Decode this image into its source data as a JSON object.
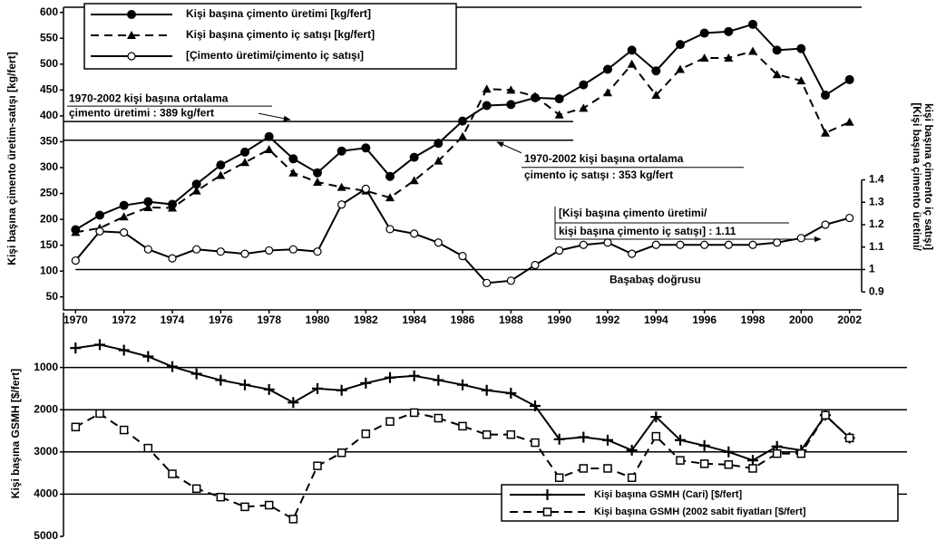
{
  "chart_data": [
    {
      "type": "line",
      "y_label": "Kişi başına çimento üretim-satışı [kg/fert]",
      "y2_label": [
        "[Kişi başına çimento üretimi/",
        "kişi başına çimento iç satışı]"
      ],
      "x": [
        1970,
        1971,
        1972,
        1973,
        1974,
        1975,
        1976,
        1977,
        1978,
        1979,
        1980,
        1981,
        1982,
        1983,
        1984,
        1985,
        1986,
        1987,
        1988,
        1989,
        1990,
        1991,
        1992,
        1993,
        1994,
        1995,
        1996,
        1997,
        1998,
        1999,
        2000,
        2001,
        2002
      ],
      "xlim": [
        1969.5,
        2002.5
      ],
      "xticks": [
        1970,
        1972,
        1974,
        1976,
        1978,
        1980,
        1982,
        1984,
        1986,
        1988,
        1990,
        1992,
        1994,
        1996,
        1998,
        2000,
        2002
      ],
      "ylim": [
        25,
        610
      ],
      "yticks": [
        50,
        100,
        150,
        200,
        250,
        300,
        350,
        400,
        450,
        500,
        550,
        600
      ],
      "y2lim": [
        0.82,
        2.17
      ],
      "y2ticks": [
        0.9,
        1,
        1.1,
        1.2,
        1.3,
        1.4
      ],
      "legend": "upper left",
      "series": [
        {
          "name": "Kişi başına çimento üretimi [kg/fert]",
          "color": "#000000",
          "dash": "solid",
          "marker": "filled-circle",
          "values": [
            180,
            208,
            227,
            234,
            229,
            268,
            305,
            330,
            360,
            317,
            290,
            332,
            338,
            283,
            320,
            347,
            390,
            420,
            422,
            435,
            433,
            460,
            490,
            527,
            487,
            538,
            560,
            563,
            577,
            527,
            530,
            440,
            470
          ]
        },
        {
          "name": "Kişi başına çimento iç satışı [kg/fert]",
          "color": "#000000",
          "dash": "dashed",
          "marker": "filled-triangle",
          "values": [
            175,
            183,
            205,
            223,
            222,
            255,
            285,
            310,
            335,
            290,
            272,
            262,
            255,
            242,
            275,
            313,
            360,
            452,
            450,
            438,
            402,
            415,
            445,
            500,
            440,
            490,
            512,
            512,
            525,
            480,
            468,
            367,
            388
          ]
        },
        {
          "name": "[Çimento üretimi/çimento iç satışı]",
          "color": "#000000",
          "dash": "solid",
          "marker": "open-circle",
          "axis": "y2",
          "values": [
            1.04,
            1.17,
            1.165,
            1.09,
            1.05,
            1.09,
            1.08,
            1.07,
            1.085,
            1.09,
            1.08,
            1.29,
            1.36,
            1.18,
            1.16,
            1.12,
            1.06,
            0.94,
            0.95,
            1.02,
            1.085,
            1.11,
            1.12,
            1.07,
            1.11,
            1.11,
            1.11,
            1.11,
            1.11,
            1.12,
            1.14,
            1.2,
            1.23
          ]
        }
      ],
      "reference_lines": [
        {
          "value": 389,
          "lines": [
            "1970-2002 kişi başına ortalama",
            "çimento üretimi : 389 kg/fert"
          ]
        },
        {
          "value": 353,
          "lines": [
            "1970-2002 kişi başına ortalama",
            "çimento iç satışı : 353 kg/fert"
          ]
        },
        {
          "value": 1,
          "axis": "y2",
          "lines": [
            "Başabaş doğrusu"
          ]
        }
      ],
      "annotations": [
        {
          "lines": [
            "[Kişi başına çimento üretimi/",
            "kişi başına çimento iç satışı] : 1.11"
          ]
        }
      ]
    },
    {
      "type": "line",
      "y_label": "Kişi başına GSMH [$/fert]",
      "x": [
        1970,
        1971,
        1972,
        1973,
        1974,
        1975,
        1976,
        1977,
        1978,
        1979,
        1980,
        1981,
        1982,
        1983,
        1984,
        1985,
        1986,
        1987,
        1988,
        1989,
        1990,
        1991,
        1992,
        1993,
        1994,
        1995,
        1996,
        1997,
        1998,
        1999,
        2000,
        2001,
        2002
      ],
      "xlim": [
        1969.5,
        2002.5
      ],
      "ylim": [
        -300,
        5000
      ],
      "y_inverted": true,
      "yticks": [
        1000,
        2000,
        3000,
        4000,
        5000
      ],
      "grid": true,
      "legend": "lower right",
      "series": [
        {
          "name": "Kişi başına GSMH (Cari) [$/fert]",
          "color": "#000000",
          "dash": "solid",
          "marker": "plus",
          "values": [
            540,
            460,
            590,
            740,
            980,
            1150,
            1300,
            1410,
            1520,
            1830,
            1500,
            1540,
            1370,
            1240,
            1200,
            1300,
            1410,
            1540,
            1610,
            1910,
            2700,
            2650,
            2720,
            2960,
            2170,
            2720,
            2850,
            3000,
            3200,
            2870,
            2960,
            2130,
            2670
          ]
        },
        {
          "name": "Kişi başına GSMH (2002 sabit fiyatları [$/fert]",
          "color": "#000000",
          "dash": "dashed",
          "marker": "open-square",
          "values": [
            2410,
            2090,
            2480,
            2910,
            3520,
            3870,
            4070,
            4300,
            4260,
            4590,
            3330,
            3020,
            2570,
            2280,
            2070,
            2200,
            2390,
            2590,
            2590,
            2780,
            3610,
            3390,
            3390,
            3610,
            2630,
            3200,
            3280,
            3300,
            3390,
            3040,
            3040,
            2130,
            2670
          ]
        }
      ]
    }
  ]
}
